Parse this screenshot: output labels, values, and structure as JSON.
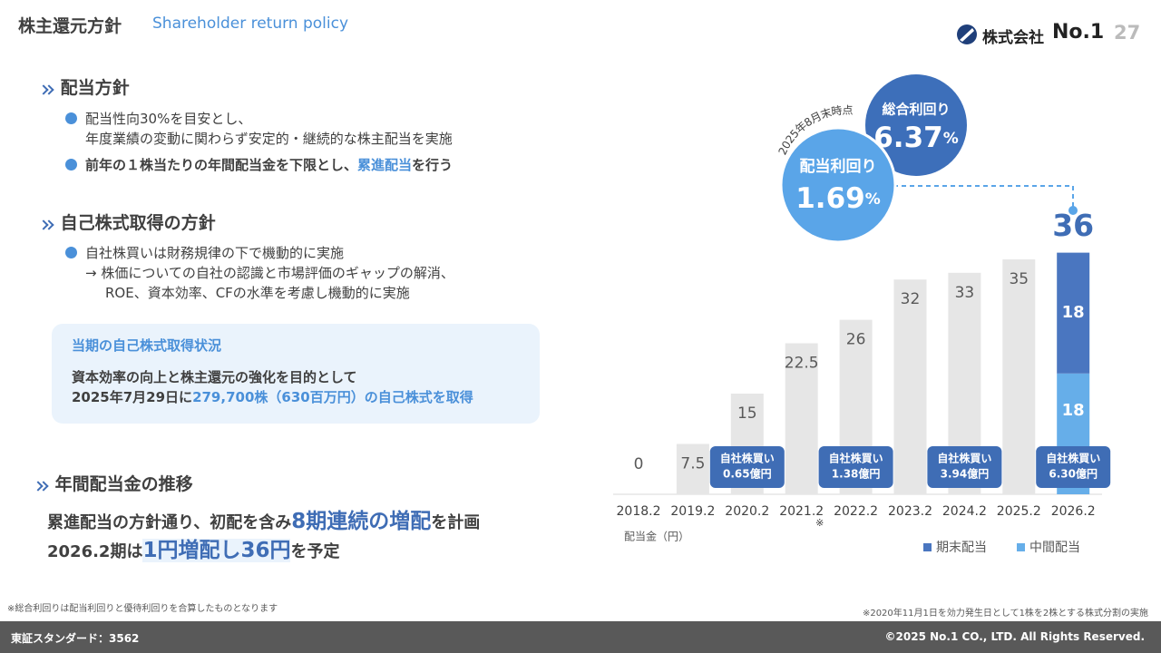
{
  "header": {
    "title": "株主還元方針",
    "subtitle": "Shareholder return policy",
    "company": "株式会社",
    "brand": "No.1",
    "page": "27"
  },
  "dividend_policy": {
    "heading": "配当方針",
    "items": [
      [
        "配当性向30%を目安とし、",
        "年度業績の変動に関わらず安定的・継続的な株主配当を実施"
      ],
      [
        "前年の１株当たりの年間配当金を下限とし、",
        "累進配当",
        "を行う"
      ]
    ]
  },
  "buyback_policy": {
    "heading": "自己株式取得の方針",
    "lines": [
      "自社株買いは財務規律の下で機動的に実施",
      "→ 株価についての自社の認識と市場評価のギャップの解消、",
      "ROE、資本効率、CFの水準を考慮し機動的に実施"
    ]
  },
  "buyback_status": {
    "title": "当期の自己株式取得状況",
    "line1": "資本効率の向上と株主還元の強化を目的として",
    "line2": [
      "2025年7月29日に",
      "279,700株（630百万円）の自己株式を取得"
    ]
  },
  "dividend_trend": {
    "heading": "年間配当金の推移",
    "line1": [
      "累進配当の方針通り、初配を含み",
      "8期連続の増配",
      "を計画"
    ],
    "line2": [
      "2026.2期は",
      "1円増配し36円",
      "を予定"
    ]
  },
  "yields": {
    "as_of": "2025年8月末時点",
    "dividend_yield": {
      "label": "配当利回り",
      "value": "1.69",
      "unit": "%"
    },
    "total_yield": {
      "label": "総合利回り",
      "value": "6.37",
      "unit": "%"
    }
  },
  "notes": {
    "left": "※総合利回りは配当利回りと優待利回りを合算したものとなります",
    "right": "※2020年11月1日を効力発生日として1株を2株とする株式分割の実施"
  },
  "footer": {
    "left": "東証スタンダード：3562",
    "right": "©2025 No.1 CO., LTD. All Rights Reserved."
  },
  "chart_data": {
    "type": "stacked_bar",
    "y_label": "配当金（円）",
    "legend": "bottom-right",
    "categories": [
      "2018.2",
      "2019.2",
      "2020.2",
      "2021.2",
      "2022.2",
      "2023.2",
      "2024.2",
      "2025.2",
      "2026.2"
    ],
    "category_marks": [
      null,
      null,
      null,
      "※",
      null,
      null,
      null,
      null,
      null
    ],
    "values": [
      0,
      7.5,
      15,
      22.5,
      26,
      32,
      33,
      35,
      36
    ],
    "color": "#e6e6e6",
    "series": [
      {
        "name": "期末配当",
        "color": "#4a76c0",
        "values": [
          null,
          null,
          null,
          null,
          null,
          null,
          null,
          null,
          18
        ]
      },
      {
        "name": "中間配当",
        "color": "#66aee9",
        "values": [
          null,
          null,
          null,
          null,
          null,
          null,
          null,
          null,
          18
        ]
      }
    ],
    "annotations": [
      null,
      null,
      {
        "title": "自社株買い",
        "amount": "0.65億円"
      },
      null,
      {
        "title": "自社株買い",
        "amount": "1.38億円"
      },
      null,
      {
        "title": "自社株買い",
        "amount": "3.94億円"
      },
      null,
      {
        "title": "自社株買い",
        "amount": "6.30億円"
      }
    ]
  }
}
